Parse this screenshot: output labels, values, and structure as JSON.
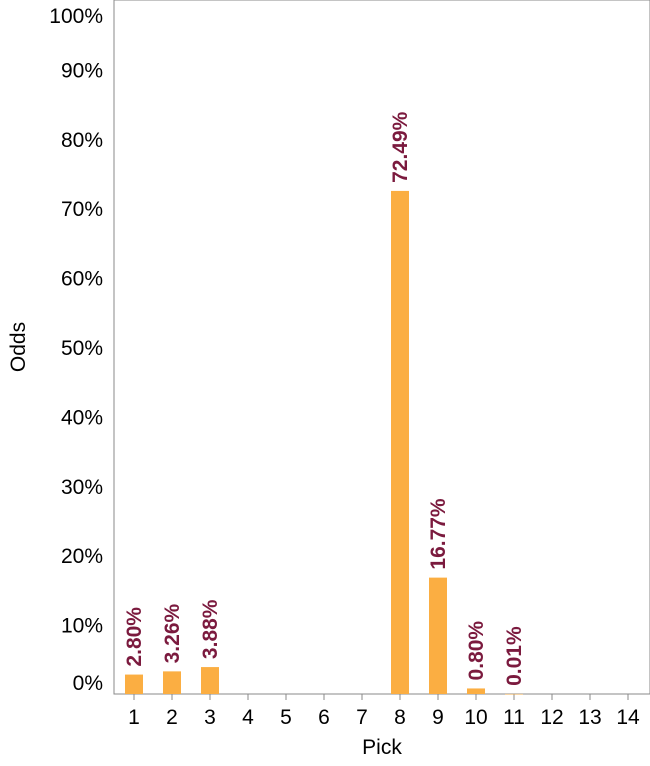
{
  "chart_data": {
    "type": "bar",
    "xlabel": "Pick",
    "ylabel": "Odds",
    "categories": [
      "1",
      "2",
      "3",
      "4",
      "5",
      "6",
      "7",
      "8",
      "9",
      "10",
      "11",
      "12",
      "13",
      "14"
    ],
    "values": [
      2.8,
      3.26,
      3.88,
      null,
      null,
      null,
      null,
      72.49,
      16.77,
      0.8,
      0.01,
      null,
      null,
      null
    ],
    "data_labels": [
      "2.80%",
      "3.26%",
      "3.88%",
      "",
      "",
      "",
      "",
      "72.49%",
      "16.77%",
      "0.80%",
      "0.01%",
      "",
      "",
      ""
    ],
    "y_ticks": [
      "0%",
      "10%",
      "20%",
      "30%",
      "40%",
      "50%",
      "60%",
      "70%",
      "80%",
      "90%",
      "100%"
    ],
    "ylim": [
      0,
      100
    ],
    "grid": false,
    "colors": {
      "bar": "#fbae42",
      "label": "#7b1a3e",
      "axis": "#888888"
    }
  }
}
